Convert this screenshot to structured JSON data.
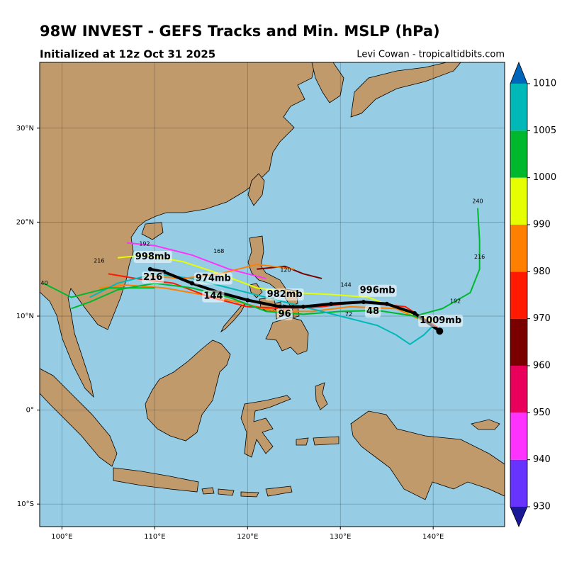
{
  "title": "98W INVEST - GEFS Tracks and Min. MSLP (hPa)",
  "subtitle": "Initialized at 12z Oct 31 2025",
  "credit": "Levi Cowan - tropicaltidbits.com",
  "chart_data": {
    "type": "track_map",
    "xlim": [
      97.6,
      147.7
    ],
    "ylim": [
      -12.4,
      37.0
    ],
    "xticks": [
      {
        "value": 100,
        "label": "100°E"
      },
      {
        "value": 110,
        "label": "110°E"
      },
      {
        "value": 120,
        "label": "120°E"
      },
      {
        "value": 130,
        "label": "130°E"
      },
      {
        "value": 140,
        "label": "140°E"
      }
    ],
    "yticks": [
      {
        "value": -10,
        "label": "10°S"
      },
      {
        "value": 0,
        "label": "0°"
      },
      {
        "value": 10,
        "label": "10°N"
      },
      {
        "value": 20,
        "label": "20°N"
      },
      {
        "value": 30,
        "label": "30°N"
      }
    ],
    "grid": true,
    "members": [
      {
        "color": "#e6ff00",
        "lon": [
          140,
          137,
          133,
          129,
          125,
          121,
          117,
          113,
          109,
          106
        ],
        "lat": [
          9.5,
          10.5,
          12,
          12.3,
          12.5,
          13,
          14.5,
          15.8,
          16.5,
          16.2
        ]
      },
      {
        "color": "#ff7f00",
        "lon": [
          140,
          136,
          131,
          127,
          123,
          119,
          115,
          111,
          107,
          104
        ],
        "lat": [
          9,
          10.8,
          11,
          10.5,
          10.5,
          11.5,
          12.3,
          13,
          13.3,
          13
        ]
      },
      {
        "color": "#ff1a00",
        "lon": [
          140.5,
          137,
          132,
          128,
          124,
          120,
          116,
          112,
          108,
          105
        ],
        "lat": [
          8.8,
          11,
          11.5,
          11,
          10.8,
          11,
          12,
          13.5,
          14,
          14.5
        ]
      },
      {
        "color": "#00b82e",
        "lon": [
          140,
          138,
          134,
          130,
          126,
          122,
          118,
          114,
          110,
          106,
          103,
          101
        ],
        "lat": [
          9,
          10,
          10.6,
          10.5,
          10.2,
          10.5,
          12,
          13,
          13.5,
          12.8,
          11.5,
          10.8
        ]
      },
      {
        "color": "#00b82e",
        "lon": [
          138,
          141,
          144,
          145,
          145,
          144.8
        ],
        "lat": [
          10,
          10.8,
          12.5,
          15,
          18,
          21.5
        ]
      },
      {
        "color": "#00b8b8",
        "lon": [
          140,
          139,
          137.5,
          136,
          134,
          130,
          126,
          122,
          118,
          114,
          110,
          106,
          103
        ],
        "lat": [
          9,
          8,
          7,
          8,
          9,
          10,
          11,
          12,
          13,
          14,
          14.5,
          13.5,
          12
        ]
      },
      {
        "color": "#ff33ff",
        "lon": [
          122,
          118,
          114,
          110,
          107
        ],
        "lat": [
          14,
          15,
          16.5,
          17.5,
          17.8
        ]
      },
      {
        "color": "#7a0000",
        "lon": [
          121,
          124,
          126,
          128
        ],
        "lat": [
          15,
          15.3,
          14.5,
          14
        ]
      },
      {
        "color": "#ff7f00",
        "lon": [
          125,
          121,
          117,
          113,
          109
        ],
        "lat": [
          15,
          15.5,
          14.5,
          14,
          14.3
        ]
      },
      {
        "color": "#00b82e",
        "lon": [
          110,
          105,
          101,
          98
        ],
        "lat": [
          13,
          13,
          12,
          13.5
        ]
      }
    ],
    "mean_track": {
      "color": "#000000",
      "lon": [
        140.7,
        138,
        135,
        132.5,
        129,
        126,
        123.5,
        120,
        117,
        114,
        111,
        109.5
      ],
      "lat": [
        8.4,
        10.3,
        11.3,
        11.5,
        11.3,
        11,
        11,
        11.7,
        12.5,
        13.5,
        14.7,
        15
      ]
    },
    "annotations": [
      {
        "text": "1009mb",
        "lon": 140.8,
        "lat": 9.5
      },
      {
        "text": "996mb",
        "lon": 134,
        "lat": 12.7
      },
      {
        "text": "48",
        "lon": 133.5,
        "lat": 10.5
      },
      {
        "text": "982mb",
        "lon": 124,
        "lat": 12.3
      },
      {
        "text": "96",
        "lon": 124,
        "lat": 10.2
      },
      {
        "text": "974mb",
        "lon": 116.3,
        "lat": 14
      },
      {
        "text": "144",
        "lon": 116.3,
        "lat": 12.1
      },
      {
        "text": "998mb",
        "lon": 109.8,
        "lat": 16.3
      },
      {
        "text": "216",
        "lon": 109.8,
        "lat": 14.1
      }
    ],
    "hour_labels": [
      {
        "text": "240",
        "lon": 144.8,
        "lat": 22.2
      },
      {
        "text": "216",
        "lon": 145,
        "lat": 16.3
      },
      {
        "text": "192",
        "lon": 142.4,
        "lat": 11.6
      },
      {
        "text": "144",
        "lon": 130.6,
        "lat": 13.3
      },
      {
        "text": "120",
        "lon": 124.1,
        "lat": 14.9
      },
      {
        "text": "168",
        "lon": 116.9,
        "lat": 16.9
      },
      {
        "text": "192",
        "lon": 108.9,
        "lat": 17.7
      },
      {
        "text": "240",
        "lon": 97.9,
        "lat": 13.5
      },
      {
        "text": "216",
        "lon": 104,
        "lat": 15.9
      },
      {
        "text": "72",
        "lon": 130.9,
        "lat": 10.2
      }
    ],
    "colorbar": {
      "levels": [
        930,
        940,
        950,
        960,
        970,
        980,
        990,
        1000,
        1005,
        1010
      ],
      "colors": [
        "#6633ff",
        "#ff33ff",
        "#e8005a",
        "#7a0000",
        "#ff1a00",
        "#ff7f00",
        "#e6ff00",
        "#00b82e",
        "#00b8b8"
      ],
      "extend_colors": [
        "#1a1a99",
        "#0066bb"
      ]
    }
  }
}
